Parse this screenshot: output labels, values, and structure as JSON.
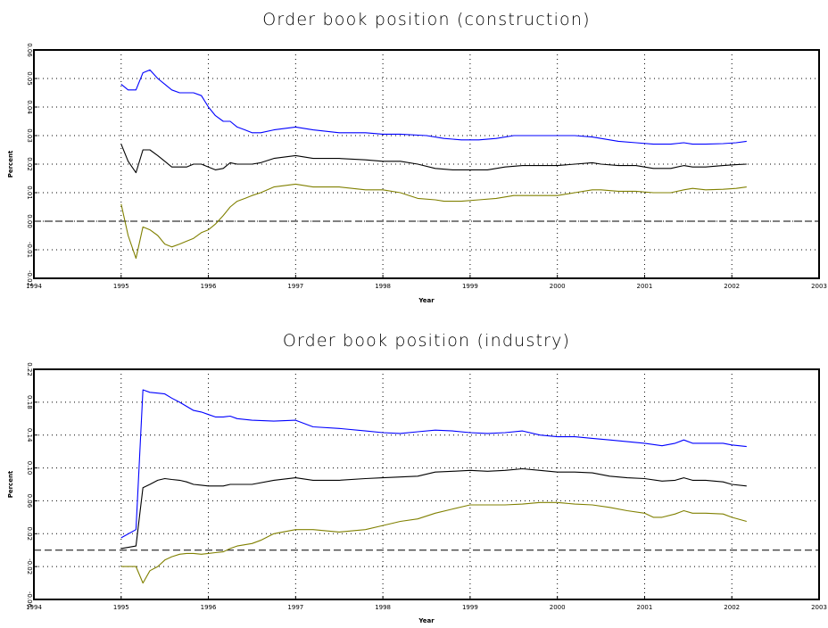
{
  "chart_data": [
    {
      "type": "line",
      "title": "Order book position (construction)",
      "xlabel": "Year",
      "ylabel": "Percent",
      "xlim": [
        1994,
        2003
      ],
      "ylim": [
        -0.02,
        0.06
      ],
      "xticks": [
        1994,
        1995,
        1996,
        1997,
        1998,
        1999,
        2000,
        2001,
        2002,
        2003
      ],
      "yticks": [
        -0.02,
        -0.01,
        0.0,
        0.01,
        0.02,
        0.03,
        0.04,
        0.05,
        0.06
      ],
      "xtick_labels": [
        "1994",
        "1995",
        "1996",
        "1997",
        "1998",
        "1999",
        "2000",
        "2001",
        "2002",
        "2003"
      ],
      "ytick_labels": [
        "-0.02",
        "-0.01",
        "0.00",
        "0.01",
        "0.02",
        "0.03",
        "0.04",
        "0.05",
        "0.06"
      ],
      "grid": true,
      "reference_line": 0.0,
      "series": [
        {
          "color": "#0000ff",
          "x": [
            1995.0,
            1995.08,
            1995.17,
            1995.25,
            1995.33,
            1995.42,
            1995.5,
            1995.58,
            1995.67,
            1995.75,
            1995.83,
            1995.92,
            1996.0,
            1996.08,
            1996.17,
            1996.25,
            1996.33,
            1996.42,
            1996.5,
            1996.6,
            1996.75,
            1997.0,
            1997.2,
            1997.5,
            1997.8,
            1998.0,
            1998.2,
            1998.5,
            1998.7,
            1998.9,
            1999.1,
            1999.3,
            1999.5,
            1999.7,
            2000.0,
            2000.2,
            2000.4,
            2000.5,
            2000.7,
            2000.9,
            2001.1,
            2001.3,
            2001.45,
            2001.55,
            2001.7,
            2001.9,
            2002.05,
            2002.17
          ],
          "y": [
            0.048,
            0.046,
            0.046,
            0.052,
            0.053,
            0.05,
            0.048,
            0.046,
            0.045,
            0.045,
            0.045,
            0.044,
            0.04,
            0.037,
            0.035,
            0.035,
            0.033,
            0.032,
            0.031,
            0.031,
            0.032,
            0.033,
            0.032,
            0.031,
            0.031,
            0.0305,
            0.0305,
            0.03,
            0.029,
            0.0285,
            0.0285,
            0.029,
            0.03,
            0.03,
            0.03,
            0.03,
            0.0295,
            0.029,
            0.028,
            0.0275,
            0.027,
            0.027,
            0.0275,
            0.027,
            0.027,
            0.0272,
            0.0275,
            0.028
          ]
        },
        {
          "color": "#000000",
          "x": [
            1995.0,
            1995.08,
            1995.17,
            1995.25,
            1995.33,
            1995.42,
            1995.5,
            1995.58,
            1995.67,
            1995.75,
            1995.83,
            1995.92,
            1996.0,
            1996.08,
            1996.17,
            1996.25,
            1996.33,
            1996.42,
            1996.5,
            1996.6,
            1996.75,
            1997.0,
            1997.2,
            1997.5,
            1997.8,
            1998.0,
            1998.2,
            1998.4,
            1998.6,
            1998.8,
            1999.0,
            1999.2,
            1999.4,
            1999.6,
            1999.8,
            2000.0,
            2000.2,
            2000.4,
            2000.5,
            2000.7,
            2000.9,
            2001.1,
            2001.3,
            2001.45,
            2001.55,
            2001.7,
            2001.9,
            2002.05,
            2002.17
          ],
          "y": [
            0.027,
            0.021,
            0.017,
            0.025,
            0.025,
            0.023,
            0.021,
            0.019,
            0.019,
            0.019,
            0.02,
            0.02,
            0.019,
            0.018,
            0.0185,
            0.0205,
            0.02,
            0.02,
            0.02,
            0.0205,
            0.022,
            0.023,
            0.022,
            0.022,
            0.0215,
            0.021,
            0.021,
            0.02,
            0.0185,
            0.018,
            0.018,
            0.018,
            0.019,
            0.0195,
            0.0195,
            0.0195,
            0.02,
            0.0205,
            0.02,
            0.0195,
            0.0195,
            0.0185,
            0.0185,
            0.0195,
            0.019,
            0.019,
            0.0195,
            0.0198,
            0.02
          ]
        },
        {
          "color": "#808000",
          "x": [
            1995.0,
            1995.08,
            1995.17,
            1995.25,
            1995.33,
            1995.42,
            1995.5,
            1995.58,
            1995.67,
            1995.75,
            1995.83,
            1995.92,
            1996.0,
            1996.08,
            1996.17,
            1996.25,
            1996.33,
            1996.42,
            1996.5,
            1996.6,
            1996.75,
            1997.0,
            1997.2,
            1997.5,
            1997.8,
            1998.0,
            1998.2,
            1998.4,
            1998.6,
            1998.7,
            1998.9,
            1999.1,
            1999.3,
            1999.5,
            1999.8,
            2000.0,
            2000.2,
            2000.4,
            2000.5,
            2000.7,
            2000.9,
            2001.1,
            2001.3,
            2001.45,
            2001.55,
            2001.7,
            2001.9,
            2002.05,
            2002.17
          ],
          "y": [
            0.006,
            -0.005,
            -0.013,
            -0.002,
            -0.003,
            -0.005,
            -0.008,
            -0.009,
            -0.008,
            -0.007,
            -0.006,
            -0.004,
            -0.003,
            -0.001,
            0.002,
            0.005,
            0.007,
            0.008,
            0.009,
            0.01,
            0.012,
            0.013,
            0.012,
            0.012,
            0.011,
            0.011,
            0.01,
            0.008,
            0.0075,
            0.007,
            0.007,
            0.0075,
            0.008,
            0.009,
            0.009,
            0.009,
            0.01,
            0.011,
            0.011,
            0.0105,
            0.0105,
            0.01,
            0.01,
            0.011,
            0.0115,
            0.011,
            0.0112,
            0.0115,
            0.012
          ]
        }
      ]
    },
    {
      "type": "line",
      "title": "Order book position (industry)",
      "xlabel": "Year",
      "ylabel": "Percent",
      "xlim": [
        1994,
        2003
      ],
      "ylim": [
        -0.06,
        0.22
      ],
      "xticks": [
        1994,
        1995,
        1996,
        1997,
        1998,
        1999,
        2000,
        2001,
        2002,
        2003
      ],
      "yticks": [
        -0.06,
        -0.02,
        0.02,
        0.06,
        0.1,
        0.14,
        0.18,
        0.22
      ],
      "xtick_labels": [
        "1994",
        "1995",
        "1996",
        "1997",
        "1998",
        "1999",
        "2000",
        "2001",
        "2002",
        "2003"
      ],
      "ytick_labels": [
        "-0.06",
        "-0.02",
        "0.02",
        "0.06",
        "0.10",
        "0.14",
        "0.18",
        "0.22"
      ],
      "grid": true,
      "reference_line": 0.0,
      "series": [
        {
          "color": "#0000ff",
          "x": [
            1995.0,
            1995.17,
            1995.25,
            1995.33,
            1995.42,
            1995.5,
            1995.58,
            1995.67,
            1995.75,
            1995.83,
            1995.92,
            1996.0,
            1996.08,
            1996.17,
            1996.25,
            1996.33,
            1996.5,
            1996.75,
            1997.0,
            1997.2,
            1997.5,
            1997.8,
            1998.0,
            1998.2,
            1998.4,
            1998.6,
            1998.8,
            1999.0,
            1999.2,
            1999.4,
            1999.6,
            1999.8,
            2000.0,
            2000.2,
            2000.4,
            2000.6,
            2000.8,
            2001.0,
            2001.2,
            2001.35,
            2001.45,
            2001.55,
            2001.7,
            2001.9,
            2002.0,
            2002.17
          ],
          "y": [
            0.015,
            0.025,
            0.195,
            0.192,
            0.191,
            0.19,
            0.185,
            0.18,
            0.175,
            0.17,
            0.168,
            0.165,
            0.162,
            0.162,
            0.163,
            0.16,
            0.158,
            0.157,
            0.158,
            0.15,
            0.148,
            0.145,
            0.143,
            0.142,
            0.144,
            0.146,
            0.145,
            0.143,
            0.142,
            0.143,
            0.145,
            0.14,
            0.138,
            0.138,
            0.136,
            0.134,
            0.132,
            0.13,
            0.127,
            0.13,
            0.134,
            0.13,
            0.13,
            0.13,
            0.128,
            0.126
          ]
        },
        {
          "color": "#000000",
          "x": [
            1995.0,
            1995.17,
            1995.25,
            1995.33,
            1995.42,
            1995.5,
            1995.58,
            1995.67,
            1995.75,
            1995.83,
            1995.92,
            1996.0,
            1996.08,
            1996.17,
            1996.25,
            1996.33,
            1996.5,
            1996.75,
            1997.0,
            1997.2,
            1997.5,
            1997.8,
            1998.0,
            1998.2,
            1998.4,
            1998.6,
            1998.8,
            1999.0,
            1999.2,
            1999.4,
            1999.6,
            1999.8,
            2000.0,
            2000.2,
            2000.4,
            2000.6,
            2000.8,
            2001.0,
            2001.2,
            2001.35,
            2001.45,
            2001.55,
            2001.7,
            2001.9,
            2002.0,
            2002.17
          ],
          "y": [
            0.002,
            0.005,
            0.076,
            0.08,
            0.085,
            0.087,
            0.086,
            0.085,
            0.083,
            0.08,
            0.079,
            0.078,
            0.078,
            0.078,
            0.08,
            0.08,
            0.08,
            0.085,
            0.088,
            0.085,
            0.085,
            0.087,
            0.088,
            0.089,
            0.09,
            0.095,
            0.096,
            0.097,
            0.096,
            0.097,
            0.099,
            0.097,
            0.095,
            0.095,
            0.094,
            0.09,
            0.088,
            0.087,
            0.084,
            0.085,
            0.088,
            0.085,
            0.085,
            0.083,
            0.08,
            0.078
          ]
        },
        {
          "color": "#808000",
          "x": [
            1995.0,
            1995.17,
            1995.25,
            1995.33,
            1995.42,
            1995.5,
            1995.58,
            1995.67,
            1995.75,
            1995.83,
            1995.92,
            1996.0,
            1996.08,
            1996.17,
            1996.25,
            1996.33,
            1996.5,
            1996.6,
            1996.75,
            1997.0,
            1997.2,
            1997.5,
            1997.8,
            1998.0,
            1998.2,
            1998.4,
            1998.6,
            1998.8,
            1999.0,
            1999.2,
            1999.4,
            1999.6,
            1999.8,
            2000.0,
            2000.2,
            2000.4,
            2000.6,
            2000.8,
            2001.0,
            2001.1,
            2001.2,
            2001.35,
            2001.45,
            2001.55,
            2001.7,
            2001.9,
            2002.0,
            2002.17
          ],
          "y": [
            -0.02,
            -0.02,
            -0.04,
            -0.025,
            -0.02,
            -0.012,
            -0.008,
            -0.005,
            -0.004,
            -0.004,
            -0.005,
            -0.004,
            -0.003,
            -0.002,
            0.002,
            0.005,
            0.008,
            0.012,
            0.02,
            0.025,
            0.025,
            0.022,
            0.025,
            0.03,
            0.035,
            0.038,
            0.045,
            0.05,
            0.055,
            0.055,
            0.055,
            0.056,
            0.058,
            0.058,
            0.056,
            0.055,
            0.052,
            0.048,
            0.045,
            0.04,
            0.04,
            0.044,
            0.048,
            0.045,
            0.045,
            0.044,
            0.04,
            0.035
          ]
        }
      ]
    }
  ]
}
